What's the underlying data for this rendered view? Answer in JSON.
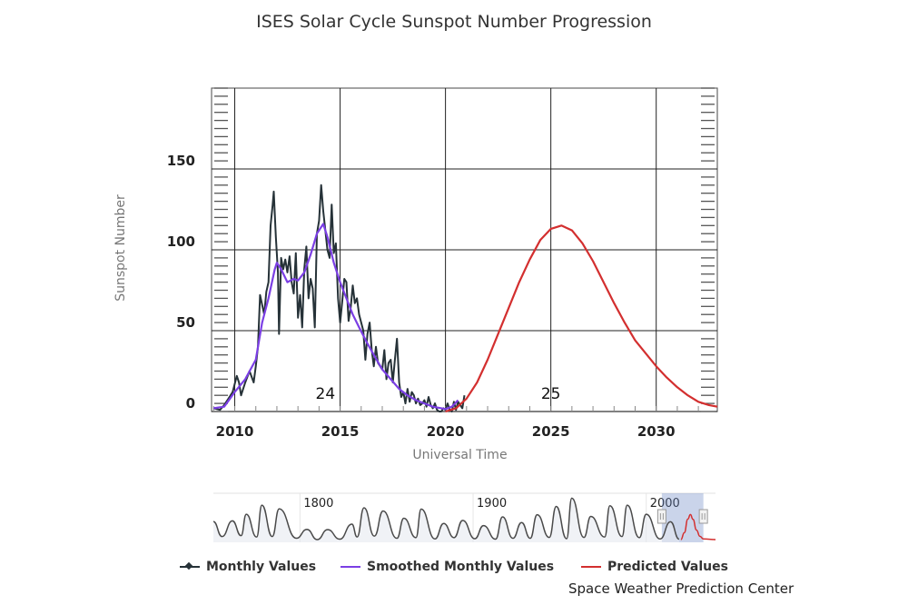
{
  "chart_data": {
    "type": "line",
    "title": "ISES Solar Cycle Sunspot Number Progression",
    "xlabel": "Universal Time",
    "ylabel": "Sunspot Number",
    "xlim": [
      2008.9,
      2032.9
    ],
    "ylim": [
      0,
      200
    ],
    "x_ticks": [
      2010,
      2015,
      2020,
      2025,
      2030
    ],
    "y_ticks": [
      0,
      50,
      100,
      150
    ],
    "grid": true,
    "legend_position": "bottom",
    "annotations": [
      {
        "text": "24",
        "x": 2014.3,
        "y": 8
      },
      {
        "text": "25",
        "x": 2025.0,
        "y": 8
      }
    ],
    "series": [
      {
        "name": "Monthly Values",
        "color": "#263238",
        "x": [
          2009.0,
          2009.3,
          2009.5,
          2009.7,
          2009.9,
          2010.1,
          2010.2,
          2010.3,
          2010.5,
          2010.7,
          2010.9,
          2011.0,
          2011.1,
          2011.2,
          2011.3,
          2011.4,
          2011.5,
          2011.6,
          2011.7,
          2011.8,
          2011.85,
          2011.95,
          2012.05,
          2012.1,
          2012.2,
          2012.3,
          2012.4,
          2012.5,
          2012.6,
          2012.7,
          2012.8,
          2012.9,
          2013.0,
          2013.1,
          2013.2,
          2013.3,
          2013.4,
          2013.5,
          2013.6,
          2013.7,
          2013.8,
          2013.9,
          2014.0,
          2014.1,
          2014.2,
          2014.3,
          2014.4,
          2014.5,
          2014.6,
          2014.7,
          2014.8,
          2014.9,
          2015.0,
          2015.1,
          2015.2,
          2015.3,
          2015.4,
          2015.5,
          2015.6,
          2015.7,
          2015.8,
          2015.9,
          2016.0,
          2016.1,
          2016.2,
          2016.3,
          2016.4,
          2016.5,
          2016.6,
          2016.7,
          2016.8,
          2016.9,
          2017.0,
          2017.1,
          2017.2,
          2017.3,
          2017.4,
          2017.5,
          2017.6,
          2017.7,
          2017.8,
          2017.9,
          2018.0,
          2018.1,
          2018.2,
          2018.3,
          2018.4,
          2018.5,
          2018.6,
          2018.7,
          2018.8,
          2018.9,
          2019.0,
          2019.1,
          2019.2,
          2019.3,
          2019.4,
          2019.5,
          2019.6,
          2019.7,
          2019.8,
          2019.9,
          2020.0,
          2020.1,
          2020.2,
          2020.3,
          2020.4,
          2020.5,
          2020.6,
          2020.7,
          2020.8,
          2020.9
        ],
        "values": [
          2,
          1,
          4,
          8,
          12,
          22,
          18,
          10,
          18,
          25,
          18,
          28,
          40,
          72,
          66,
          60,
          74,
          80,
          115,
          128,
          136,
          108,
          86,
          48,
          95,
          88,
          94,
          86,
          96,
          80,
          73,
          98,
          58,
          72,
          52,
          88,
          102,
          70,
          82,
          76,
          52,
          110,
          118,
          140,
          124,
          112,
          100,
          95,
          128,
          98,
          104,
          70,
          55,
          68,
          82,
          80,
          56,
          64,
          78,
          67,
          70,
          60,
          55,
          50,
          32,
          48,
          55,
          38,
          28,
          40,
          30,
          28,
          26,
          38,
          20,
          30,
          32,
          18,
          32,
          45,
          18,
          9,
          12,
          5,
          14,
          6,
          12,
          10,
          5,
          8,
          4,
          5,
          7,
          3,
          9,
          4,
          2,
          5,
          1,
          0,
          0,
          2,
          1,
          5,
          1,
          0,
          6,
          1,
          6,
          4,
          2,
          10
        ]
      },
      {
        "name": "Smoothed Monthly Values",
        "color": "#7b3fe4",
        "x": [
          2009.0,
          2009.5,
          2010.0,
          2010.5,
          2011.0,
          2011.3,
          2011.6,
          2011.9,
          2012.0,
          2012.2,
          2012.5,
          2012.8,
          2013.0,
          2013.3,
          2013.6,
          2013.9,
          2014.2,
          2014.4,
          2014.7,
          2015.0,
          2015.3,
          2015.6,
          2015.9,
          2016.3,
          2016.6,
          2017.0,
          2017.4,
          2017.8,
          2018.2,
          2018.6,
          2019.0,
          2019.4,
          2019.8,
          2020.0,
          2020.3,
          2020.6
        ],
        "values": [
          2,
          3,
          12,
          20,
          32,
          55,
          70,
          88,
          92,
          88,
          80,
          82,
          81,
          86,
          97,
          110,
          116,
          108,
          92,
          80,
          70,
          60,
          52,
          42,
          35,
          26,
          20,
          14,
          10,
          7,
          5,
          3,
          2,
          1.5,
          3,
          7
        ]
      },
      {
        "name": "Predicted Values",
        "color": "#d32f2f",
        "x": [
          2020.0,
          2020.5,
          2021.0,
          2021.5,
          2022.0,
          2022.5,
          2023.0,
          2023.5,
          2024.0,
          2024.5,
          2025.0,
          2025.5,
          2026.0,
          2026.5,
          2027.0,
          2027.5,
          2028.0,
          2028.5,
          2029.0,
          2029.5,
          2030.0,
          2030.5,
          2031.0,
          2031.5,
          2032.0,
          2032.5,
          2032.9
        ],
        "values": [
          0,
          2,
          8,
          18,
          32,
          48,
          64,
          80,
          94,
          106,
          113,
          115,
          112,
          104,
          93,
          80,
          67,
          55,
          44,
          36,
          28,
          21,
          15,
          10,
          6,
          4,
          3
        ]
      }
    ],
    "navigator": {
      "xlim": [
        1750,
        2040
      ],
      "labels": [
        "1800",
        "1900",
        "2000"
      ],
      "selection": [
        2009,
        2033
      ],
      "series": [
        {
          "name": "Historical Smoothed",
          "color": "#4a4a4a",
          "x": [
            1750,
            1755,
            1761,
            1766,
            1769,
            1775,
            1778,
            1784,
            1788,
            1798,
            1804,
            1810,
            1816,
            1823,
            1830,
            1833,
            1837,
            1843,
            1848,
            1856,
            1860,
            1867,
            1870,
            1878,
            1883,
            1889,
            1894,
            1901,
            1906,
            1913,
            1917,
            1923,
            1928,
            1933,
            1937,
            1944,
            1948,
            1954,
            1957,
            1964,
            1968,
            1976,
            1979,
            1986,
            1989,
            1996,
            2000,
            2008,
            2014,
            2019
          ],
          "values": [
            83,
            14,
            86,
            18,
            116,
            12,
            158,
            14,
            141,
            6,
            47,
            0,
            46,
            2,
            71,
            12,
            146,
            16,
            131,
            6,
            98,
            9,
            140,
            3,
            74,
            9,
            88,
            4,
            64,
            2,
            104,
            6,
            78,
            6,
            114,
            10,
            152,
            4,
            190,
            10,
            106,
            12,
            155,
            14,
            158,
            9,
            116,
            3,
            82,
            2
          ]
        },
        {
          "name": "Predicted",
          "color": "#d32f2f",
          "x": [
            2020,
            2022,
            2024,
            2025.5,
            2027,
            2029,
            2031,
            2033,
            2040
          ],
          "values": [
            0,
            32,
            94,
            115,
            93,
            44,
            15,
            3,
            0
          ]
        }
      ]
    }
  },
  "legend": {
    "items": [
      {
        "label": "Monthly Values",
        "color": "#263238"
      },
      {
        "label": "Smoothed Monthly Values",
        "color": "#7b3fe4"
      },
      {
        "label": "Predicted Values",
        "color": "#d32f2f"
      }
    ]
  },
  "credit": "Space Weather Prediction Center"
}
